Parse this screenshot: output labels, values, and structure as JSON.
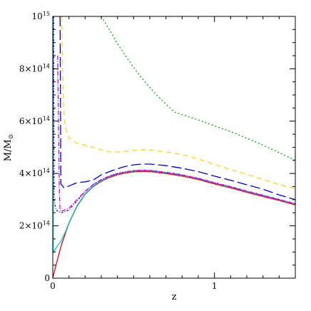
{
  "chart_data": {
    "type": "line",
    "xlabel": "z",
    "ylabel": "M/M",
    "ylabel_subscript": "⊙",
    "xlim": [
      0,
      1.5
    ],
    "ylim": [
      0,
      1000000000000000.0
    ],
    "grid": false,
    "legend": "none",
    "x_ticks": [
      {
        "value": 0,
        "label": "0"
      },
      {
        "value": 1,
        "label": "1"
      }
    ],
    "y_ticks": [
      {
        "value": 0,
        "mant": "0",
        "exp": ""
      },
      {
        "value": 200000000000000.0,
        "mant": "2×10",
        "exp": "14"
      },
      {
        "value": 400000000000000.0,
        "mant": "4×10",
        "exp": "14"
      },
      {
        "value": 600000000000000.0,
        "mant": "6×10",
        "exp": "14"
      },
      {
        "value": 800000000000000.0,
        "mant": "8×10",
        "exp": "14"
      },
      {
        "value": 1000000000000000.0,
        "mant": "10",
        "exp": "15"
      }
    ],
    "x_minor_step": 0.1,
    "y_minor_step": 50000000000000.0,
    "series": [
      {
        "color": "#ee0000",
        "dash": "none",
        "points": [
          [
            0,
            0
          ],
          [
            0.01,
            25000000000000.0
          ],
          [
            0.02,
            50000000000000.0
          ],
          [
            0.03,
            73000000000000.0
          ],
          [
            0.05,
            120000000000000.0
          ],
          [
            0.08,
            175000000000000.0
          ],
          [
            0.1,
            210000000000000.0
          ],
          [
            0.15,
            275000000000000.0
          ],
          [
            0.2,
            320000000000000.0
          ],
          [
            0.25,
            350000000000000.0
          ],
          [
            0.3,
            370000000000000.0
          ],
          [
            0.35,
            385000000000000.0
          ],
          [
            0.4,
            395000000000000.0
          ],
          [
            0.45,
            402000000000000.0
          ],
          [
            0.5,
            406000000000000.0
          ],
          [
            0.55,
            408000000000000.0
          ],
          [
            0.6,
            407000000000000.0
          ],
          [
            0.7,
            400000000000000.0
          ],
          [
            0.8,
            390000000000000.0
          ],
          [
            0.9,
            377000000000000.0
          ],
          [
            1.0,
            360000000000000.0
          ],
          [
            1.1,
            345000000000000.0
          ],
          [
            1.2,
            328000000000000.0
          ],
          [
            1.3,
            312000000000000.0
          ],
          [
            1.4,
            297000000000000.0
          ],
          [
            1.5,
            280000000000000.0
          ]
        ]
      },
      {
        "color": "#00cccc",
        "dash": "none",
        "points": [
          [
            0.003,
            1000000000000000.0
          ],
          [
            0.003,
            100000000000000.0
          ],
          [
            0.01,
            105000000000000.0
          ],
          [
            0.02,
            115000000000000.0
          ],
          [
            0.03,
            125000000000000.0
          ],
          [
            0.05,
            140000000000000.0
          ],
          [
            0.08,
            180000000000000.0
          ],
          [
            0.1,
            212000000000000.0
          ],
          [
            0.15,
            277000000000000.0
          ],
          [
            0.2,
            322000000000000.0
          ],
          [
            0.25,
            352000000000000.0
          ],
          [
            0.3,
            373000000000000.0
          ],
          [
            0.35,
            388000000000000.0
          ],
          [
            0.4,
            398000000000000.0
          ],
          [
            0.45,
            405000000000000.0
          ],
          [
            0.5,
            409000000000000.0
          ],
          [
            0.55,
            411000000000000.0
          ],
          [
            0.6,
            410000000000000.0
          ],
          [
            0.7,
            403000000000000.0
          ],
          [
            0.8,
            393000000000000.0
          ],
          [
            0.9,
            380000000000000.0
          ],
          [
            1.0,
            363000000000000.0
          ],
          [
            1.1,
            348000000000000.0
          ],
          [
            1.2,
            331000000000000.0
          ],
          [
            1.3,
            315000000000000.0
          ],
          [
            1.4,
            300000000000000.0
          ],
          [
            1.5,
            283000000000000.0
          ]
        ]
      },
      {
        "color": "#2222cc",
        "dash": "3,2,1,2",
        "points": [
          [
            0.005,
            1000000000000000.0
          ],
          [
            0.008,
            300000000000000.0
          ],
          [
            0.02,
            260000000000000.0
          ],
          [
            0.05,
            250000000000000.0
          ],
          [
            0.08,
            255000000000000.0
          ],
          [
            0.1,
            260000000000000.0
          ],
          [
            0.15,
            295000000000000.0
          ],
          [
            0.2,
            330000000000000.0
          ],
          [
            0.25,
            357000000000000.0
          ],
          [
            0.3,
            377000000000000.0
          ],
          [
            0.35,
            390000000000000.0
          ],
          [
            0.4,
            400000000000000.0
          ],
          [
            0.45,
            407000000000000.0
          ],
          [
            0.5,
            411000000000000.0
          ],
          [
            0.55,
            413000000000000.0
          ],
          [
            0.6,
            412000000000000.0
          ],
          [
            0.7,
            405000000000000.0
          ],
          [
            0.8,
            395000000000000.0
          ],
          [
            0.9,
            382000000000000.0
          ],
          [
            1.0,
            365000000000000.0
          ],
          [
            1.1,
            350000000000000.0
          ],
          [
            1.2,
            333000000000000.0
          ],
          [
            1.3,
            317000000000000.0
          ],
          [
            1.4,
            301000000000000.0
          ],
          [
            1.5,
            285000000000000.0
          ]
        ]
      },
      {
        "color": "#dd00dd",
        "dash": "6,2,1,2",
        "points": [
          [
            0.03,
            850000000000000.0
          ],
          [
            0.04,
            350000000000000.0
          ],
          [
            0.045,
            260000000000000.0
          ],
          [
            0.05,
            255000000000000.0
          ],
          [
            0.08,
            262000000000000.0
          ],
          [
            0.1,
            268000000000000.0
          ],
          [
            0.15,
            300000000000000.0
          ],
          [
            0.2,
            332000000000000.0
          ],
          [
            0.25,
            358000000000000.0
          ],
          [
            0.3,
            377000000000000.0
          ],
          [
            0.35,
            390000000000000.0
          ],
          [
            0.4,
            400000000000000.0
          ],
          [
            0.45,
            406000000000000.0
          ],
          [
            0.5,
            410000000000000.0
          ],
          [
            0.55,
            412000000000000.0
          ],
          [
            0.6,
            411000000000000.0
          ],
          [
            0.7,
            404000000000000.0
          ],
          [
            0.8,
            394000000000000.0
          ],
          [
            0.9,
            381000000000000.0
          ],
          [
            1.0,
            364000000000000.0
          ],
          [
            1.1,
            349000000000000.0
          ],
          [
            1.2,
            332000000000000.0
          ],
          [
            1.3,
            316000000000000.0
          ],
          [
            1.4,
            300000000000000.0
          ],
          [
            1.5,
            284000000000000.0
          ]
        ]
      },
      {
        "color": "#0000cc",
        "dash": "14,5",
        "points": [
          [
            0.045,
            1000000000000000.0
          ],
          [
            0.05,
            360000000000000.0
          ],
          [
            0.07,
            345000000000000.0
          ],
          [
            0.1,
            352000000000000.0
          ],
          [
            0.15,
            365000000000000.0
          ],
          [
            0.2,
            368000000000000.0
          ],
          [
            0.25,
            375000000000000.0
          ],
          [
            0.3,
            395000000000000.0
          ],
          [
            0.35,
            407000000000000.0
          ],
          [
            0.4,
            418000000000000.0
          ],
          [
            0.45,
            427000000000000.0
          ],
          [
            0.5,
            433000000000000.0
          ],
          [
            0.55,
            436000000000000.0
          ],
          [
            0.6,
            436000000000000.0
          ],
          [
            0.7,
            430000000000000.0
          ],
          [
            0.8,
            420000000000000.0
          ],
          [
            0.9,
            407000000000000.0
          ],
          [
            1.0,
            390000000000000.0
          ],
          [
            1.1,
            374000000000000.0
          ],
          [
            1.2,
            357000000000000.0
          ],
          [
            1.3,
            340000000000000.0
          ],
          [
            1.4,
            318000000000000.0
          ],
          [
            1.5,
            300000000000000.0
          ]
        ]
      },
      {
        "color": "#ffd21a",
        "dash": "7,5",
        "points": [
          [
            0.055,
            1000000000000000.0
          ],
          [
            0.06,
            800000000000000.0
          ],
          [
            0.07,
            620000000000000.0
          ],
          [
            0.08,
            570000000000000.0
          ],
          [
            0.1,
            535000000000000.0
          ],
          [
            0.15,
            515000000000000.0
          ],
          [
            0.2,
            508000000000000.0
          ],
          [
            0.25,
            500000000000000.0
          ],
          [
            0.3,
            490000000000000.0
          ],
          [
            0.35,
            483000000000000.0
          ],
          [
            0.4,
            482000000000000.0
          ],
          [
            0.45,
            485000000000000.0
          ],
          [
            0.5,
            488000000000000.0
          ],
          [
            0.55,
            490000000000000.0
          ],
          [
            0.6,
            490000000000000.0
          ],
          [
            0.7,
            482000000000000.0
          ],
          [
            0.8,
            472000000000000.0
          ],
          [
            0.9,
            455000000000000.0
          ],
          [
            1.0,
            435000000000000.0
          ],
          [
            1.1,
            415000000000000.0
          ],
          [
            1.2,
            397000000000000.0
          ],
          [
            1.3,
            377000000000000.0
          ],
          [
            1.4,
            358000000000000.0
          ],
          [
            1.5,
            342000000000000.0
          ]
        ]
      },
      {
        "color": "#00aa00",
        "dash": "2,3",
        "points": [
          [
            0.3,
            1000000000000000.0
          ],
          [
            0.35,
            950000000000000.0
          ],
          [
            0.4,
            895000000000000.0
          ],
          [
            0.45,
            850000000000000.0
          ],
          [
            0.5,
            805000000000000.0
          ],
          [
            0.55,
            765000000000000.0
          ],
          [
            0.6,
            728000000000000.0
          ],
          [
            0.65,
            695000000000000.0
          ],
          [
            0.7,
            665000000000000.0
          ],
          [
            0.75,
            635000000000000.0
          ],
          [
            0.8,
            625000000000000.0
          ],
          [
            0.9,
            605000000000000.0
          ],
          [
            1.0,
            582000000000000.0
          ],
          [
            1.1,
            560000000000000.0
          ],
          [
            1.2,
            535000000000000.0
          ],
          [
            1.3,
            508000000000000.0
          ],
          [
            1.4,
            480000000000000.0
          ],
          [
            1.5,
            450000000000000.0
          ]
        ]
      }
    ]
  }
}
